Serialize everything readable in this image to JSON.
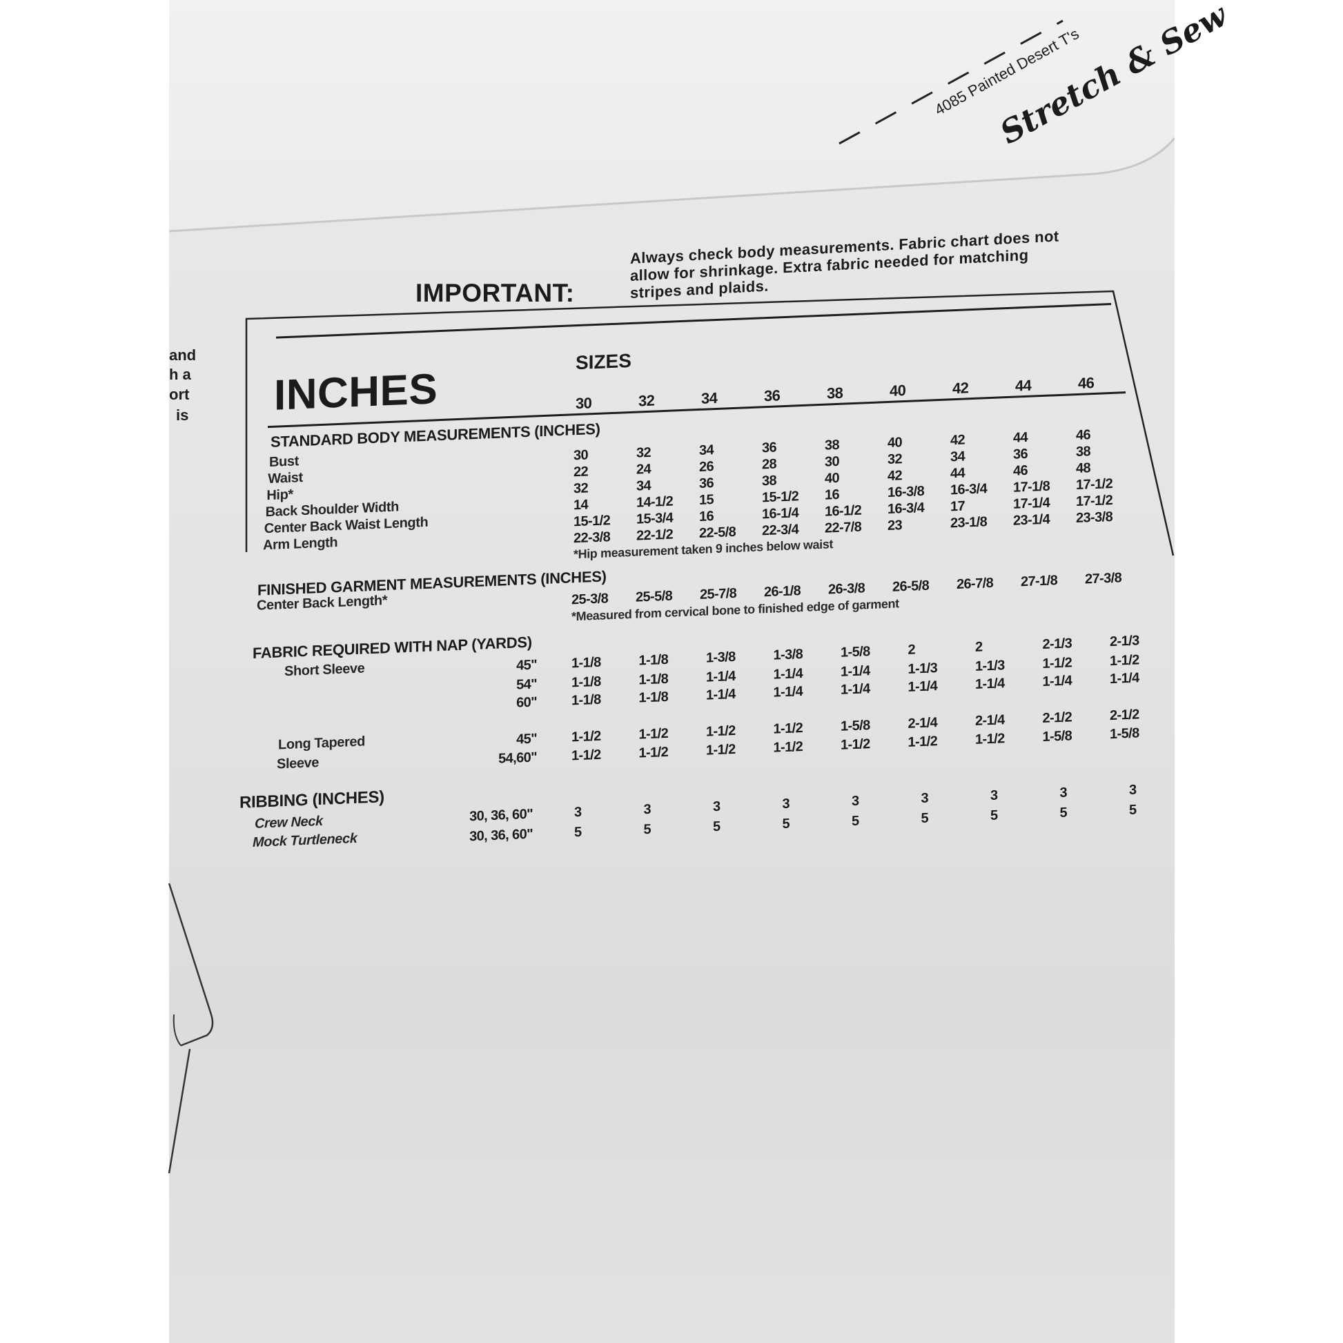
{
  "brand": {
    "pattern_line": "4085 Painted Desert T's",
    "logo": "Stretch & Sew"
  },
  "important": {
    "label": "IMPORTANT:",
    "lines": [
      "Always check body measurements. Fabric chart does not",
      "allow for shrinkage. Extra fabric needed for matching",
      "stripes and plaids."
    ]
  },
  "margin_text": [
    "and",
    "h a",
    "ort",
    "is"
  ],
  "chart": {
    "title": "INCHES",
    "sizes_label": "SIZES",
    "sizes": [
      "30",
      "32",
      "34",
      "36",
      "38",
      "40",
      "42",
      "44",
      "46"
    ]
  },
  "body": {
    "heading": "STANDARD BODY MEASUREMENTS (INCHES)",
    "rows": [
      {
        "label": "Bust",
        "values": [
          "30",
          "32",
          "34",
          "36",
          "38",
          "40",
          "42",
          "44",
          "46"
        ]
      },
      {
        "label": "Waist",
        "values": [
          "22",
          "24",
          "26",
          "28",
          "30",
          "32",
          "34",
          "36",
          "38"
        ]
      },
      {
        "label": "Hip*",
        "values": [
          "32",
          "34",
          "36",
          "38",
          "40",
          "42",
          "44",
          "46",
          "48"
        ]
      },
      {
        "label": "Back Shoulder Width",
        "values": [
          "14",
          "14-1/2",
          "15",
          "15-1/2",
          "16",
          "16-3/8",
          "16-3/4",
          "17-1/8",
          "17-1/2"
        ]
      },
      {
        "label": "Center Back Waist Length",
        "values": [
          "15-1/2",
          "15-3/4",
          "16",
          "16-1/4",
          "16-1/2",
          "16-3/4",
          "17",
          "17-1/4",
          "17-1/2"
        ]
      },
      {
        "label": "Arm Length",
        "values": [
          "22-3/8",
          "22-1/2",
          "22-5/8",
          "22-3/4",
          "22-7/8",
          "23",
          "23-1/8",
          "23-1/4",
          "23-3/8"
        ]
      }
    ],
    "footnote": "*Hip measurement taken 9 inches below waist"
  },
  "finished": {
    "heading": "FINISHED GARMENT MEASUREMENTS (INCHES)",
    "rows": [
      {
        "label": "Center Back Length*",
        "values": [
          "25-3/8",
          "25-5/8",
          "25-7/8",
          "26-1/8",
          "26-3/8",
          "26-5/8",
          "26-7/8",
          "27-1/8",
          "27-3/8"
        ]
      }
    ],
    "footnote": "*Measured from cervical bone to finished edge of garment"
  },
  "fabric": {
    "heading": "FABRIC REQUIRED WITH NAP (YARDS)",
    "groups": [
      {
        "label_lines": [
          "Short Sleeve"
        ],
        "rows": [
          {
            "width": "45\"",
            "values": [
              "1-1/8",
              "1-1/8",
              "1-3/8",
              "1-3/8",
              "1-5/8",
              "2",
              "2",
              "2-1/3",
              "2-1/3"
            ]
          },
          {
            "width": "54\"",
            "values": [
              "1-1/8",
              "1-1/8",
              "1-1/4",
              "1-1/4",
              "1-1/4",
              "1-1/3",
              "1-1/3",
              "1-1/2",
              "1-1/2"
            ]
          },
          {
            "width": "60\"",
            "values": [
              "1-1/8",
              "1-1/8",
              "1-1/4",
              "1-1/4",
              "1-1/4",
              "1-1/4",
              "1-1/4",
              "1-1/4",
              "1-1/4"
            ]
          }
        ]
      },
      {
        "label_lines": [
          "Long Tapered",
          "Sleeve"
        ],
        "rows": [
          {
            "width": "45\"",
            "values": [
              "1-1/2",
              "1-1/2",
              "1-1/2",
              "1-1/2",
              "1-5/8",
              "2-1/4",
              "2-1/4",
              "2-1/2",
              "2-1/2"
            ]
          },
          {
            "width": "54,60\"",
            "values": [
              "1-1/2",
              "1-1/2",
              "1-1/2",
              "1-1/2",
              "1-1/2",
              "1-1/2",
              "1-1/2",
              "1-5/8",
              "1-5/8"
            ]
          }
        ]
      }
    ]
  },
  "ribbing": {
    "heading": "RIBBING (INCHES)",
    "rows": [
      {
        "label": "Crew Neck",
        "width": "30, 36, 60\"",
        "values": [
          "3",
          "3",
          "3",
          "3",
          "3",
          "3",
          "3",
          "3",
          "3"
        ]
      },
      {
        "label": "Mock Turtleneck",
        "width": "30, 36, 60\"",
        "values": [
          "5",
          "5",
          "5",
          "5",
          "5",
          "5",
          "5",
          "5",
          "5"
        ]
      }
    ]
  }
}
